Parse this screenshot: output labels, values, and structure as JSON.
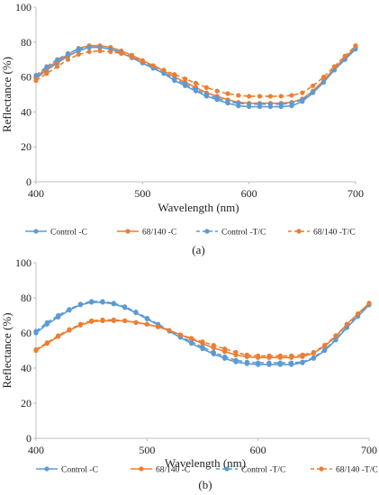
{
  "colors": {
    "control": "#5b9bd5",
    "treated": "#ed7d31",
    "axis": "#bfbfbf"
  },
  "chart_data": [
    {
      "type": "line",
      "panel_label": "(a)",
      "xlabel": "Wavelength (nm)",
      "ylabel": "Reflectance (%)",
      "xlim": [
        400,
        700
      ],
      "ylim": [
        0,
        100
      ],
      "x_ticks": [
        "400",
        "500",
        "600",
        "700"
      ],
      "y_ticks": [
        "0",
        "20",
        "40",
        "60",
        "80",
        "100"
      ],
      "legend_position": "bottom",
      "x": [
        400,
        410,
        420,
        430,
        440,
        450,
        460,
        470,
        480,
        490,
        500,
        510,
        520,
        530,
        540,
        550,
        560,
        570,
        580,
        590,
        600,
        610,
        620,
        630,
        640,
        650,
        660,
        670,
        680,
        690,
        700
      ],
      "series": [
        {
          "name": "Control -C",
          "color": "#5b9bd5",
          "dash": false,
          "marker": "circle",
          "values": [
            59,
            64,
            68,
            72,
            75,
            77,
            77,
            76,
            74,
            71,
            68,
            65,
            62,
            58,
            55,
            52,
            49,
            47,
            45,
            43.5,
            43,
            43,
            43,
            43,
            43.5,
            46,
            51,
            57,
            64,
            70,
            76
          ]
        },
        {
          "name": "68/140 -C",
          "color": "#ed7d31",
          "dash": false,
          "marker": "circle",
          "values": [
            60,
            65,
            69,
            73,
            76.5,
            78,
            78,
            77,
            75,
            72.5,
            69.5,
            66.5,
            63.5,
            60,
            57,
            54,
            51,
            49,
            47,
            45.5,
            45,
            45,
            45,
            45,
            45.5,
            47.5,
            52,
            58,
            65,
            71,
            77
          ]
        },
        {
          "name": "Control -T/C",
          "color": "#5b9bd5",
          "dash": true,
          "marker": "circle",
          "values": [
            61,
            66,
            70,
            73.5,
            76,
            77,
            77,
            76,
            74,
            71.5,
            68.5,
            65.5,
            62.5,
            59,
            56,
            53,
            50,
            48,
            46,
            45,
            44.5,
            44.5,
            44.5,
            44.5,
            45,
            47,
            51.5,
            57,
            64,
            70,
            76
          ]
        },
        {
          "name": "68/140 -T/C",
          "color": "#ed7d31",
          "dash": true,
          "marker": "circle",
          "values": [
            58,
            62,
            66,
            70,
            73,
            74.5,
            75,
            74.5,
            73.5,
            71.5,
            69,
            66.5,
            64,
            61.5,
            59,
            56.5,
            54,
            52,
            50.5,
            49.5,
            49,
            49,
            49,
            49,
            49.5,
            51,
            55,
            60,
            66,
            72,
            78
          ]
        }
      ]
    },
    {
      "type": "line",
      "panel_label": "(b)",
      "xlabel": "Wavelength (nm)",
      "ylabel": "Reflectance (%)",
      "xlim": [
        400,
        700
      ],
      "ylim": [
        0,
        100
      ],
      "x_ticks": [
        "400",
        "500",
        "600",
        "700"
      ],
      "y_ticks": [
        "0",
        "20",
        "40",
        "60",
        "80",
        "100"
      ],
      "legend_position": "bottom",
      "x": [
        400,
        410,
        420,
        430,
        440,
        450,
        460,
        470,
        480,
        490,
        500,
        510,
        520,
        530,
        540,
        550,
        560,
        570,
        580,
        590,
        600,
        610,
        620,
        630,
        640,
        650,
        660,
        670,
        680,
        690,
        700
      ],
      "series": [
        {
          "name": "Control -C",
          "color": "#5b9bd5",
          "dash": false,
          "marker": "circle",
          "values": [
            60,
            65,
            69,
            73,
            76,
            77.5,
            77.5,
            76.5,
            74.5,
            71.5,
            68,
            64.5,
            61,
            57.5,
            54,
            51,
            48,
            45.5,
            43.5,
            42.5,
            42,
            42,
            42,
            42,
            43,
            45.5,
            50,
            56,
            63,
            69.5,
            76
          ]
        },
        {
          "name": "68/140 -C",
          "color": "#ed7d31",
          "dash": false,
          "marker": "circle",
          "values": [
            50,
            54,
            58,
            61.5,
            64.5,
            66.5,
            67,
            67,
            67,
            66,
            65,
            63.5,
            61.5,
            59,
            56.5,
            54,
            51.5,
            49.5,
            47.5,
            46.5,
            46,
            46,
            46,
            46,
            46.5,
            48.5,
            52.5,
            58,
            65,
            71,
            77
          ]
        },
        {
          "name": "Control -T/C",
          "color": "#5b9bd5",
          "dash": true,
          "marker": "circle",
          "values": [
            61,
            66,
            70,
            73.5,
            76.5,
            78,
            78,
            77,
            75,
            72,
            68.5,
            65,
            61.5,
            58,
            55,
            52,
            49,
            46.5,
            44.5,
            43.5,
            43,
            43,
            43,
            43,
            43.5,
            46,
            50.5,
            56.5,
            63.5,
            70,
            76
          ]
        },
        {
          "name": "68/140 -T/C",
          "color": "#ed7d31",
          "dash": true,
          "marker": "circle",
          "values": [
            50.5,
            54.5,
            58.5,
            62,
            65,
            67,
            67.5,
            67.5,
            67,
            66,
            65,
            63.5,
            61.5,
            59,
            57,
            55,
            53,
            51,
            49,
            47.5,
            47,
            47,
            47,
            47,
            47.5,
            49,
            53,
            58.5,
            65,
            71,
            77
          ]
        }
      ]
    }
  ]
}
